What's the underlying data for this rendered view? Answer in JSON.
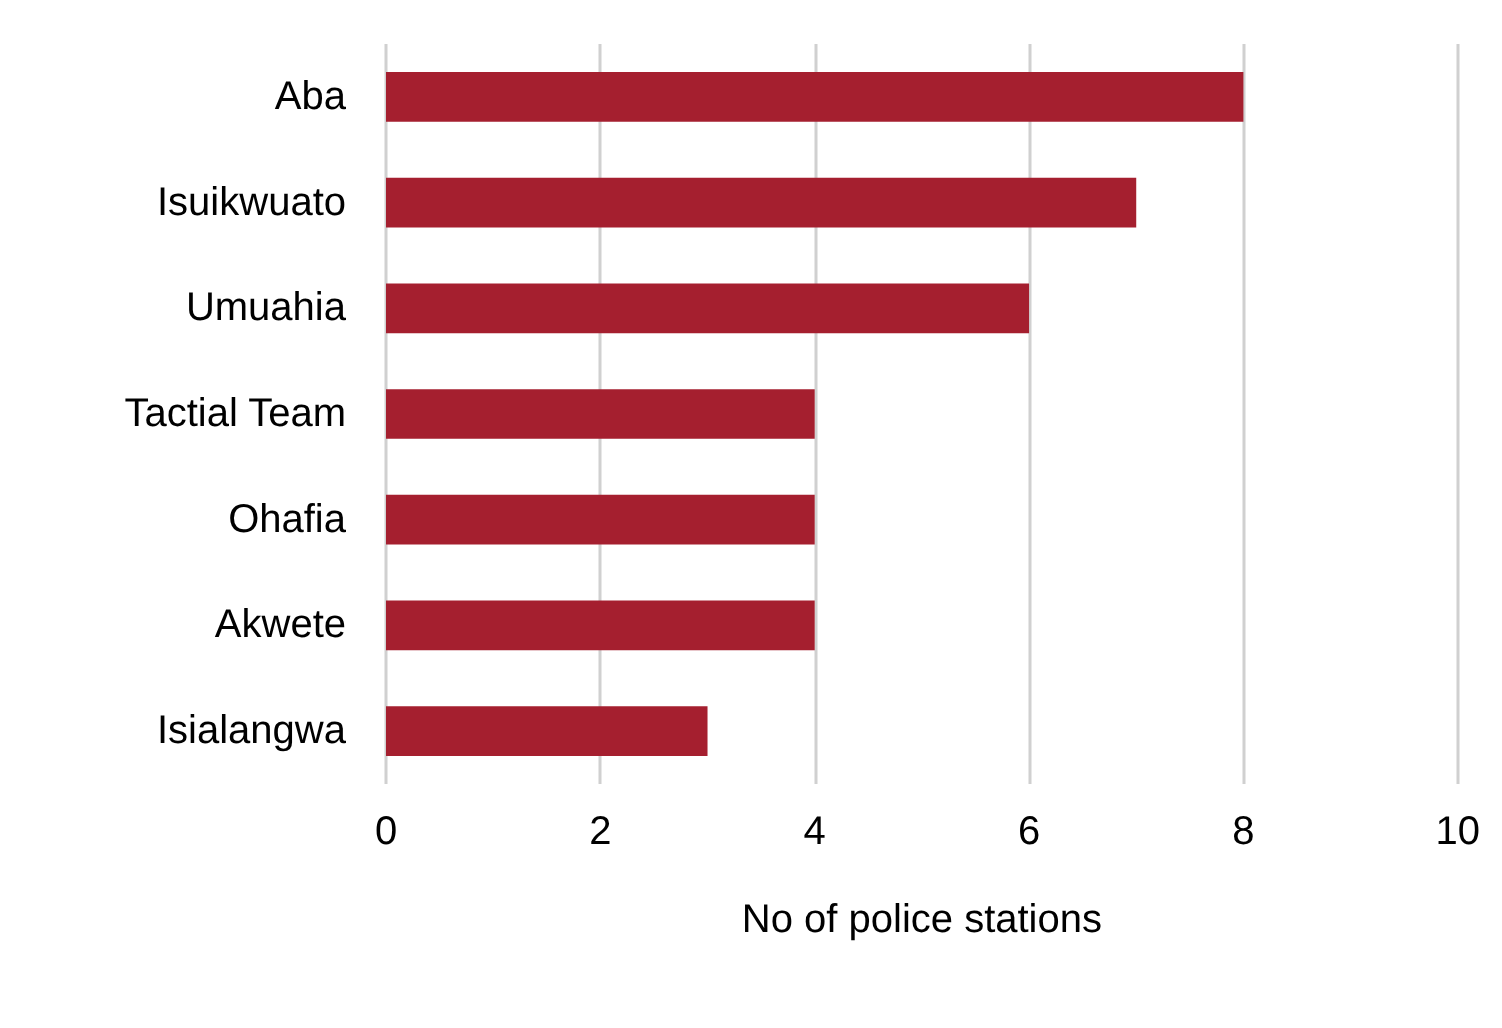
{
  "chart_data": {
    "type": "bar",
    "orientation": "horizontal",
    "categories": [
      "Aba",
      "Isuikwuato",
      "Umuahia",
      "Tactial Team",
      "Ohafia",
      "Akwete",
      "Isialangwa"
    ],
    "values": [
      8,
      7,
      6,
      4,
      4,
      4,
      3
    ],
    "color": "#a51f2f",
    "xlabel": "No of police stations",
    "xlim": [
      0,
      10
    ],
    "xticks": [
      0,
      2,
      4,
      6,
      8,
      10
    ],
    "grid": "x"
  }
}
